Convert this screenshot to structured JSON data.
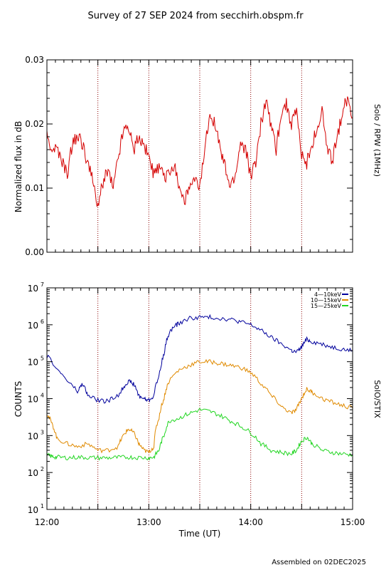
{
  "title": "Survey of 27 SEP 2024 from secchirh.obspm.fr",
  "footer": "Assembled on 02DEC2025",
  "x_axis": {
    "label": "Time (UT)",
    "ticks": [
      "12:00",
      "13:00",
      "14:00",
      "15:00"
    ],
    "range_hours": [
      12.0,
      15.0
    ],
    "dotted_markers_hours": [
      12.5,
      13.0,
      13.5,
      14.0,
      14.5
    ]
  },
  "chart_data": [
    {
      "type": "line",
      "panel": "rpw",
      "ylabel": "Normalized flux in dB",
      "right_label": "Solo / RPW (1MHz)",
      "ylim": [
        0.0,
        0.03
      ],
      "yticks": [
        "0.00",
        "0.01",
        "0.02",
        "0.03"
      ],
      "grid": false,
      "series": [
        {
          "color": "#d40000",
          "x": [
            12.0,
            12.05,
            12.1,
            12.15,
            12.2,
            12.25,
            12.3,
            12.35,
            12.4,
            12.45,
            12.5,
            12.55,
            12.6,
            12.65,
            12.7,
            12.75,
            12.8,
            12.85,
            12.9,
            12.95,
            13.0,
            13.05,
            13.1,
            13.15,
            13.2,
            13.25,
            13.3,
            13.35,
            13.4,
            13.45,
            13.5,
            13.55,
            13.6,
            13.65,
            13.7,
            13.75,
            13.8,
            13.85,
            13.9,
            13.95,
            14.0,
            14.05,
            14.1,
            14.15,
            14.2,
            14.25,
            14.3,
            14.35,
            14.4,
            14.45,
            14.5,
            14.55,
            14.6,
            14.65,
            14.7,
            14.75,
            14.8,
            14.85,
            14.9,
            14.95,
            15.0
          ],
          "values": [
            0.018,
            0.016,
            0.016,
            0.014,
            0.012,
            0.017,
            0.018,
            0.017,
            0.014,
            0.011,
            0.007,
            0.011,
            0.013,
            0.01,
            0.015,
            0.019,
            0.02,
            0.016,
            0.018,
            0.017,
            0.015,
            0.012,
            0.013,
            0.012,
            0.012,
            0.014,
            0.01,
            0.008,
            0.01,
            0.011,
            0.01,
            0.016,
            0.022,
            0.02,
            0.016,
            0.013,
            0.01,
            0.012,
            0.017,
            0.016,
            0.012,
            0.014,
            0.02,
            0.024,
            0.02,
            0.016,
            0.022,
            0.023,
            0.02,
            0.022,
            0.015,
            0.014,
            0.017,
            0.019,
            0.022,
            0.016,
            0.014,
            0.018,
            0.022,
            0.024,
            0.021
          ]
        }
      ]
    },
    {
      "type": "line",
      "panel": "stix",
      "ylabel": "COUNTS",
      "right_label": "SolO/STIX",
      "yscale": "log",
      "ylim": [
        10,
        10000000
      ],
      "yticks": [
        {
          "base": "10",
          "exp": "1"
        },
        {
          "base": "10",
          "exp": "2"
        },
        {
          "base": "10",
          "exp": "3"
        },
        {
          "base": "10",
          "exp": "4"
        },
        {
          "base": "10",
          "exp": "5"
        },
        {
          "base": "10",
          "exp": "6"
        },
        {
          "base": "10",
          "exp": "7"
        }
      ],
      "legend_position": "top-right",
      "series": [
        {
          "name": "4—10keV",
          "color": "#00009c",
          "x": [
            12.0,
            12.1,
            12.2,
            12.3,
            12.35,
            12.4,
            12.5,
            12.6,
            12.7,
            12.75,
            12.8,
            12.85,
            12.9,
            12.95,
            13.0,
            13.05,
            13.1,
            13.15,
            13.2,
            13.25,
            13.3,
            13.4,
            13.5,
            13.6,
            13.7,
            13.8,
            13.9,
            14.0,
            14.1,
            14.2,
            14.3,
            14.4,
            14.45,
            14.5,
            14.55,
            14.6,
            14.7,
            14.8,
            14.9,
            15.0
          ],
          "values": [
            140000,
            60000,
            30000,
            15000,
            25000,
            12000,
            9000,
            8500,
            12000,
            20000,
            30000,
            25000,
            12000,
            10000,
            9000,
            12000,
            40000,
            150000,
            600000,
            900000,
            1100000,
            1500000,
            1600000,
            1600000,
            1500000,
            1400000,
            1200000,
            1000000,
            700000,
            450000,
            300000,
            200000,
            180000,
            250000,
            400000,
            350000,
            300000,
            250000,
            220000,
            200000
          ]
        },
        {
          "name": "10—15keV",
          "color": "#e08a00",
          "x": [
            12.0,
            12.05,
            12.1,
            12.2,
            12.3,
            12.4,
            12.5,
            12.6,
            12.7,
            12.75,
            12.8,
            12.85,
            12.9,
            12.95,
            13.0,
            13.05,
            13.1,
            13.15,
            13.2,
            13.3,
            13.4,
            13.5,
            13.6,
            13.7,
            13.8,
            13.9,
            14.0,
            14.1,
            14.2,
            14.3,
            14.4,
            14.45,
            14.5,
            14.55,
            14.6,
            14.7,
            14.8,
            14.9,
            15.0
          ],
          "values": [
            4000,
            2000,
            800,
            600,
            500,
            600,
            400,
            400,
            500,
            1000,
            1500,
            1200,
            600,
            400,
            350,
            500,
            3000,
            10000,
            30000,
            60000,
            80000,
            100000,
            100000,
            90000,
            80000,
            70000,
            50000,
            25000,
            12000,
            6000,
            4000,
            5000,
            10000,
            18000,
            15000,
            10000,
            8000,
            6500,
            5500
          ]
        },
        {
          "name": "15—25keV",
          "color": "#22d622",
          "x": [
            12.0,
            12.05,
            12.1,
            12.2,
            12.3,
            12.4,
            12.5,
            12.6,
            12.7,
            12.8,
            12.9,
            13.0,
            13.05,
            13.1,
            13.15,
            13.2,
            13.3,
            13.4,
            13.5,
            13.6,
            13.7,
            13.8,
            13.9,
            14.0,
            14.1,
            14.2,
            14.3,
            14.4,
            14.45,
            14.5,
            14.55,
            14.6,
            14.7,
            14.8,
            14.9,
            15.0
          ],
          "values": [
            300,
            270,
            260,
            250,
            260,
            255,
            250,
            250,
            255,
            260,
            255,
            250,
            260,
            400,
            1000,
            2500,
            3000,
            4000,
            5000,
            4500,
            3500,
            2500,
            1800,
            1200,
            600,
            400,
            350,
            320,
            400,
            700,
            900,
            600,
            400,
            350,
            320,
            300
          ]
        }
      ]
    }
  ]
}
